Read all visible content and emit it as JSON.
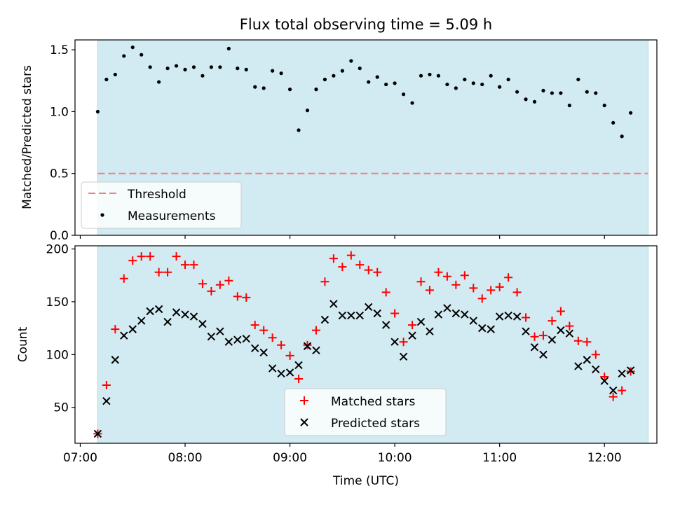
{
  "figure": {
    "title": "Flux total observing time = 5.09 h",
    "xlabel": "Time (UTC)"
  },
  "colors": {
    "shade": "#add8e6",
    "threshold": "#f08080",
    "measurements": "#000000",
    "matched": "#ff0000",
    "predicted": "#000000"
  },
  "chart_data": [
    {
      "type": "scatter",
      "ylabel": "Matched/Predicted stars",
      "xlim": [
        "06:57",
        "12:30"
      ],
      "ylim": [
        0,
        1.58
      ],
      "yticks": [
        0.0,
        0.5,
        1.0,
        1.5
      ],
      "ytick_labels": [
        "0.0",
        "0.5",
        "1.0",
        "1.5"
      ],
      "observing_span": [
        "07:10",
        "12:25"
      ],
      "threshold": {
        "name": "Threshold",
        "value": 0.5
      },
      "legend_loc": "lower left",
      "series": [
        {
          "name": "Measurements",
          "marker": "dot",
          "x": [
            "07:10",
            "07:15",
            "07:20",
            "07:25",
            "07:30",
            "07:35",
            "07:40",
            "07:45",
            "07:50",
            "07:55",
            "08:00",
            "08:05",
            "08:10",
            "08:15",
            "08:20",
            "08:25",
            "08:30",
            "08:35",
            "08:40",
            "08:45",
            "08:50",
            "08:55",
            "09:00",
            "09:05",
            "09:10",
            "09:15",
            "09:20",
            "09:25",
            "09:30",
            "09:35",
            "09:40",
            "09:45",
            "09:50",
            "09:55",
            "10:00",
            "10:05",
            "10:10",
            "10:15",
            "10:20",
            "10:25",
            "10:30",
            "10:35",
            "10:40",
            "10:45",
            "10:50",
            "10:55",
            "11:00",
            "11:05",
            "11:10",
            "11:15",
            "11:20",
            "11:25",
            "11:30",
            "11:35",
            "11:40",
            "11:45",
            "11:50",
            "11:55",
            "12:00",
            "12:05",
            "12:10",
            "12:15"
          ],
          "y": [
            1.0,
            1.26,
            1.3,
            1.45,
            1.52,
            1.46,
            1.36,
            1.24,
            1.35,
            1.37,
            1.34,
            1.36,
            1.29,
            1.36,
            1.36,
            1.51,
            1.35,
            1.34,
            1.2,
            1.19,
            1.33,
            1.31,
            1.18,
            0.85,
            1.01,
            1.18,
            1.26,
            1.29,
            1.33,
            1.41,
            1.35,
            1.24,
            1.28,
            1.22,
            1.23,
            1.14,
            1.07,
            1.29,
            1.3,
            1.29,
            1.22,
            1.19,
            1.26,
            1.23,
            1.22,
            1.29,
            1.2,
            1.26,
            1.16,
            1.1,
            1.08,
            1.17,
            1.15,
            1.15,
            1.05,
            1.26,
            1.16,
            1.15,
            1.05,
            0.91,
            0.8,
            0.99
          ]
        }
      ]
    },
    {
      "type": "scatter",
      "ylabel": "Count",
      "xlim": [
        "06:57",
        "12:30"
      ],
      "ylim": [
        16,
        203
      ],
      "yticks": [
        50,
        100,
        150,
        200
      ],
      "ytick_labels": [
        "50",
        "100",
        "150",
        "200"
      ],
      "xticks": [
        "07:00",
        "08:00",
        "09:00",
        "10:00",
        "11:00",
        "12:00"
      ],
      "observing_span": [
        "07:10",
        "12:25"
      ],
      "legend_loc": "lower center",
      "series": [
        {
          "name": "Matched stars",
          "marker": "plus",
          "x": [
            "07:10",
            "07:15",
            "07:20",
            "07:25",
            "07:30",
            "07:35",
            "07:40",
            "07:45",
            "07:50",
            "07:55",
            "08:00",
            "08:05",
            "08:10",
            "08:15",
            "08:20",
            "08:25",
            "08:30",
            "08:35",
            "08:40",
            "08:45",
            "08:50",
            "08:55",
            "09:00",
            "09:05",
            "09:10",
            "09:15",
            "09:20",
            "09:25",
            "09:30",
            "09:35",
            "09:40",
            "09:45",
            "09:50",
            "09:55",
            "10:00",
            "10:05",
            "10:10",
            "10:15",
            "10:20",
            "10:25",
            "10:30",
            "10:35",
            "10:40",
            "10:45",
            "10:50",
            "10:55",
            "11:00",
            "11:05",
            "11:10",
            "11:15",
            "11:20",
            "11:25",
            "11:30",
            "11:35",
            "11:40",
            "11:45",
            "11:50",
            "11:55",
            "12:00",
            "12:05",
            "12:10",
            "12:15"
          ],
          "y": [
            25,
            71,
            124,
            172,
            189,
            193,
            193,
            178,
            178,
            193,
            185,
            185,
            167,
            160,
            166,
            170,
            155,
            154,
            128,
            123,
            116,
            109,
            99,
            77,
            109,
            123,
            169,
            191,
            183,
            194,
            185,
            180,
            178,
            159,
            139,
            112,
            128,
            169,
            161,
            178,
            174,
            166,
            175,
            163,
            153,
            161,
            164,
            173,
            159,
            135,
            117,
            118,
            132,
            141,
            127,
            113,
            112,
            100,
            79,
            60,
            66,
            84
          ]
        },
        {
          "name": "Predicted stars",
          "marker": "x",
          "x": [
            "07:10",
            "07:15",
            "07:20",
            "07:25",
            "07:30",
            "07:35",
            "07:40",
            "07:45",
            "07:50",
            "07:55",
            "08:00",
            "08:05",
            "08:10",
            "08:15",
            "08:20",
            "08:25",
            "08:30",
            "08:35",
            "08:40",
            "08:45",
            "08:50",
            "08:55",
            "09:00",
            "09:05",
            "09:10",
            "09:15",
            "09:20",
            "09:25",
            "09:30",
            "09:35",
            "09:40",
            "09:45",
            "09:50",
            "09:55",
            "10:00",
            "10:05",
            "10:10",
            "10:15",
            "10:20",
            "10:25",
            "10:30",
            "10:35",
            "10:40",
            "10:45",
            "10:50",
            "10:55",
            "11:00",
            "11:05",
            "11:10",
            "11:15",
            "11:20",
            "11:25",
            "11:30",
            "11:35",
            "11:40",
            "11:45",
            "11:50",
            "11:55",
            "12:00",
            "12:05",
            "12:10",
            "12:15"
          ],
          "y": [
            25,
            56,
            95,
            118,
            124,
            132,
            141,
            143,
            131,
            140,
            138,
            136,
            129,
            117,
            122,
            112,
            114,
            115,
            106,
            102,
            87,
            82,
            83,
            90,
            108,
            104,
            133,
            148,
            137,
            137,
            137,
            145,
            139,
            128,
            112,
            98,
            118,
            131,
            122,
            138,
            144,
            139,
            138,
            132,
            125,
            124,
            136,
            137,
            136,
            122,
            107,
            100,
            114,
            123,
            120,
            89,
            95,
            86,
            75,
            66,
            82,
            85
          ]
        }
      ]
    }
  ]
}
